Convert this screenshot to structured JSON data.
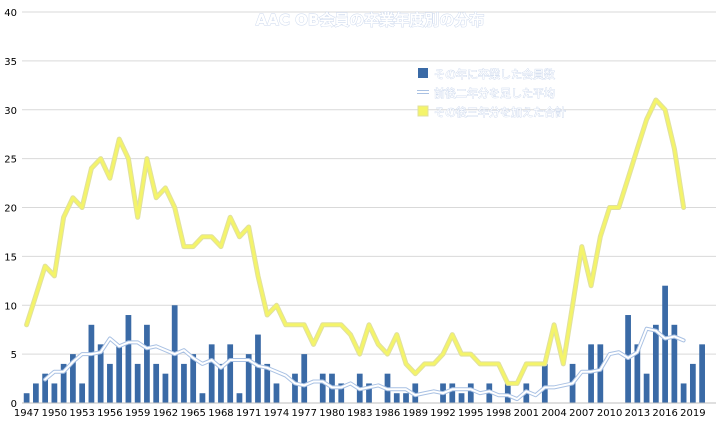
{
  "chart_data": {
    "type": "bar",
    "title": "AAC OB会員の卒業年度別の分布",
    "xlabel": "",
    "ylabel": "",
    "ylim": [
      0,
      40
    ],
    "yticks": [
      0,
      5,
      10,
      15,
      20,
      25,
      30,
      35,
      40
    ],
    "grid": true,
    "legend_position": "top-right",
    "colors": {
      "bars": "#3a6aa6",
      "avg": "#ffffff",
      "avg_shadow": "#a9c1e3",
      "cum": "#f4f46a",
      "cum_shadow": "#e0e0a0"
    },
    "x": [
      1947,
      1948,
      1949,
      1950,
      1951,
      1952,
      1953,
      1954,
      1955,
      1956,
      1957,
      1958,
      1959,
      1960,
      1961,
      1962,
      1963,
      1964,
      1965,
      1966,
      1967,
      1968,
      1969,
      1970,
      1971,
      1972,
      1973,
      1974,
      1975,
      1976,
      1977,
      1978,
      1979,
      1980,
      1981,
      1982,
      1983,
      1984,
      1985,
      1986,
      1987,
      1988,
      1989,
      1990,
      1991,
      1992,
      1993,
      1994,
      1995,
      1996,
      1997,
      1998,
      1999,
      2000,
      2001,
      2002,
      2003,
      2004,
      2005,
      2006,
      2007,
      2008,
      2009,
      2010,
      2011,
      2012,
      2013,
      2014,
      2015,
      2016,
      2017,
      2018,
      2019,
      2020,
      2021
    ],
    "x_tick_labels": [
      "1947",
      "1950",
      "1953",
      "1956",
      "1959",
      "1962",
      "1965",
      "1968",
      "1971",
      "1974",
      "1977",
      "1980",
      "1983",
      "1986",
      "1989",
      "1992",
      "1995",
      "1998",
      "2001",
      "2004",
      "2007",
      "2010",
      "2013",
      "2016",
      "2019"
    ],
    "series": [
      {
        "name": "その年に卒業した会員数",
        "kind": "bar",
        "values": [
          1,
          2,
          3,
          2,
          4,
          5,
          2,
          8,
          6,
          4,
          6,
          9,
          4,
          8,
          4,
          3,
          10,
          4,
          5,
          1,
          6,
          4,
          6,
          1,
          5,
          7,
          4,
          2,
          0,
          3,
          5,
          0,
          3,
          3,
          2,
          0,
          3,
          2,
          0,
          3,
          1,
          1,
          2,
          0,
          0,
          2,
          2,
          1,
          2,
          0,
          2,
          0,
          2,
          0,
          2,
          0,
          4,
          0,
          0,
          4,
          0,
          6,
          6,
          0,
          0,
          9,
          6,
          3,
          8,
          12,
          8,
          2,
          4,
          6,
          0
        ]
      },
      {
        "name": "前後二年分を足した平均",
        "kind": "line",
        "values": [
          null,
          null,
          2.4,
          3.2,
          3.2,
          4.2,
          5.0,
          5.0,
          5.2,
          6.6,
          5.8,
          6.2,
          6.2,
          5.6,
          5.8,
          5.4,
          5.0,
          5.4,
          4.6,
          4.0,
          4.4,
          3.6,
          4.4,
          4.4,
          4.4,
          3.8,
          3.6,
          3.2,
          2.8,
          2.0,
          1.8,
          2.2,
          2.2,
          1.6,
          1.6,
          2.0,
          1.4,
          1.6,
          1.8,
          1.4,
          1.4,
          1.4,
          0.8,
          1.0,
          1.2,
          1.0,
          1.4,
          1.4,
          1.4,
          1.0,
          1.2,
          0.8,
          0.8,
          0.4,
          1.2,
          0.8,
          1.6,
          1.6,
          1.8,
          2.0,
          3.2,
          3.2,
          3.4,
          5.0,
          5.2,
          4.6,
          5.2,
          7.6,
          7.4,
          6.6,
          6.8,
          6.4,
          null,
          null,
          null
        ]
      },
      {
        "name": "その後三年分を加えた合計",
        "kind": "line",
        "values": [
          8,
          11,
          14,
          13,
          19,
          21,
          20,
          24,
          25,
          23,
          27,
          25,
          19,
          25,
          21,
          22,
          20,
          16,
          16,
          17,
          17,
          16,
          19,
          17,
          18,
          13,
          9,
          10,
          8,
          8,
          8,
          6,
          8,
          8,
          8,
          7,
          5,
          8,
          6,
          5,
          7,
          4,
          3,
          4,
          4,
          5,
          7,
          5,
          5,
          4,
          4,
          4,
          2,
          2,
          4,
          4,
          4,
          8,
          4,
          10,
          16,
          12,
          17,
          20,
          20,
          23,
          26,
          29,
          31,
          30,
          26,
          20,
          null,
          null,
          null
        ]
      }
    ]
  }
}
